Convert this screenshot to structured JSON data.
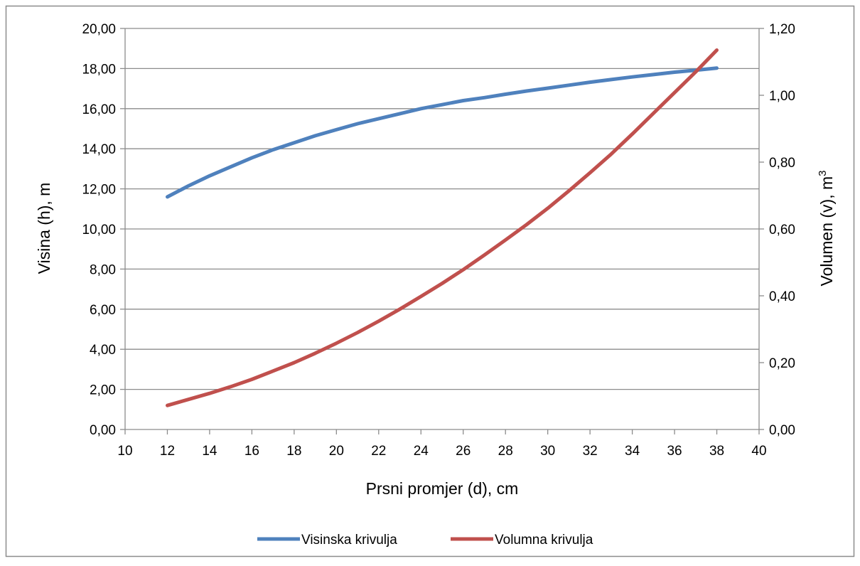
{
  "chart_data": {
    "type": "line",
    "title": "",
    "xlabel": "Prsni promjer (d), cm",
    "ylabel": "Visina (h), m",
    "y2label_base": "Volumen (v), m",
    "y2label_sup": "3",
    "xlim": [
      10,
      40
    ],
    "ylim": [
      0,
      20
    ],
    "y2lim": [
      0,
      1.2
    ],
    "grid": true,
    "legend_position": "bottom",
    "x_ticks": [
      "10",
      "12",
      "14",
      "16",
      "18",
      "20",
      "22",
      "24",
      "26",
      "28",
      "30",
      "32",
      "34",
      "36",
      "38",
      "40"
    ],
    "y_ticks": [
      "0,00",
      "2,00",
      "4,00",
      "6,00",
      "8,00",
      "10,00",
      "12,00",
      "14,00",
      "16,00",
      "18,00",
      "20,00"
    ],
    "y2_ticks": [
      "0,00",
      "0,20",
      "0,40",
      "0,60",
      "0,80",
      "1,00",
      "1,20"
    ],
    "series": [
      {
        "name": "Visinska krivulja",
        "axis": "left",
        "color": "#4F81BD",
        "x": [
          12,
          13,
          14,
          15,
          16,
          17,
          18,
          19,
          20,
          21,
          22,
          23,
          24,
          25,
          26,
          27,
          28,
          29,
          30,
          31,
          32,
          33,
          34,
          35,
          36,
          37,
          38
        ],
        "values": [
          11.6,
          12.15,
          12.65,
          13.1,
          13.55,
          13.95,
          14.3,
          14.65,
          14.95,
          15.25,
          15.5,
          15.75,
          16.0,
          16.2,
          16.4,
          16.55,
          16.72,
          16.88,
          17.02,
          17.17,
          17.32,
          17.45,
          17.58,
          17.7,
          17.82,
          17.92,
          18.02
        ]
      },
      {
        "name": "Volumna krivulja",
        "axis": "right",
        "color": "#C0504D",
        "x": [
          12,
          13,
          14,
          15,
          16,
          17,
          18,
          19,
          20,
          21,
          22,
          23,
          24,
          25,
          26,
          27,
          28,
          29,
          30,
          31,
          32,
          33,
          34,
          35,
          36,
          37,
          38
        ],
        "values": [
          0.072,
          0.09,
          0.108,
          0.128,
          0.15,
          0.175,
          0.2,
          0.228,
          0.258,
          0.29,
          0.324,
          0.36,
          0.398,
          0.437,
          0.478,
          0.522,
          0.567,
          0.613,
          0.662,
          0.714,
          0.768,
          0.824,
          0.884,
          0.946,
          1.008,
          1.07,
          1.135
        ]
      }
    ]
  }
}
